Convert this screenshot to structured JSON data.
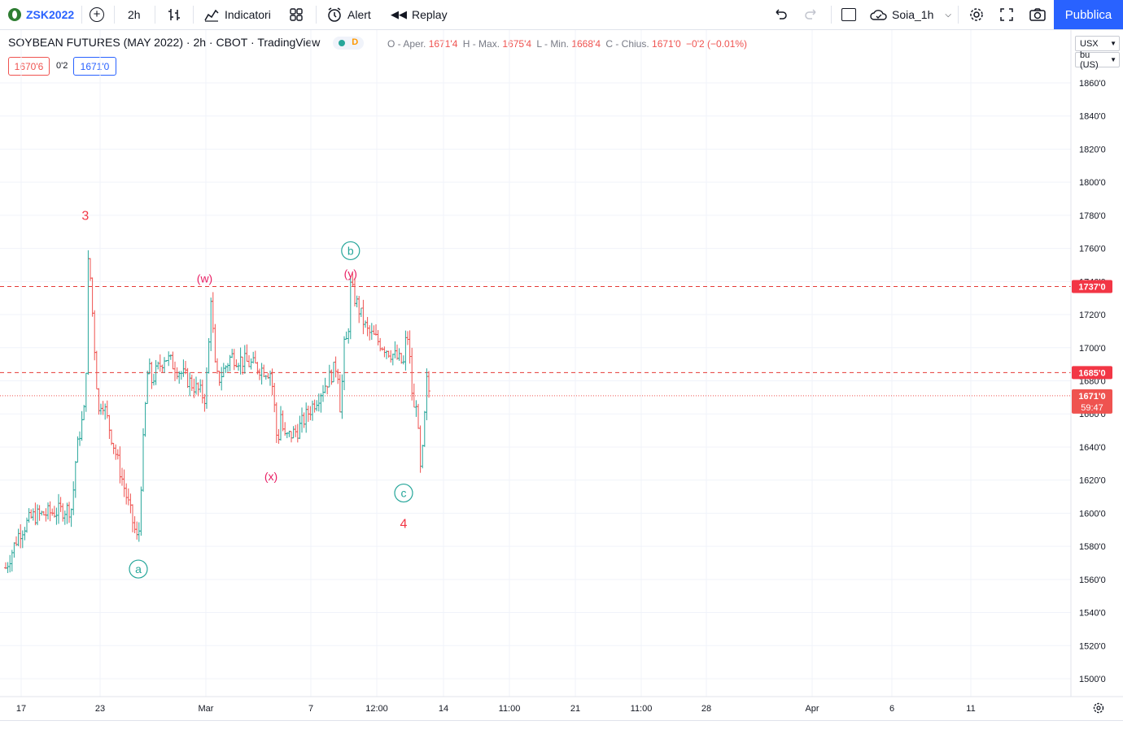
{
  "toolbar": {
    "symbol": "ZSK2022",
    "interval": "2h",
    "indicators_label": "Indicatori",
    "alert_label": "Alert",
    "replay_label": "Replay",
    "layout_name": "Soia_1h",
    "publish_label": "Pubblica"
  },
  "legend": {
    "title": "SOYBEAN FUTURES (MAY 2022)",
    "interval": "2h",
    "exchange": "CBOT",
    "source": "TradingView",
    "flag": "D",
    "open_label": "O - Aper.",
    "open": "1671'4",
    "high_label": "H - Max.",
    "high": "1675'4",
    "low_label": "L - Min.",
    "low": "1668'4",
    "close_label": "C - Chius.",
    "close": "1671'0",
    "change": "−0'2 (−0.01%)",
    "sell": "1670'6",
    "spread": "0'2",
    "buy": "1671'0"
  },
  "price_scale": {
    "currency": "USX",
    "unit": "bu (US)",
    "ticks": [
      "1860'0",
      "1840'0",
      "1820'0",
      "1800'0",
      "1780'0",
      "1760'0",
      "1740'0",
      "1720'0",
      "1700'0",
      "1680'0",
      "1660'0",
      "1640'0",
      "1620'0",
      "1600'0",
      "1580'0",
      "1560'0",
      "1540'0",
      "1520'0",
      "1500'0"
    ],
    "current_price": "1671'0",
    "countdown": "59:47"
  },
  "time_axis": {
    "labels": [
      "17",
      "23",
      "Mar",
      "7",
      "12:00",
      "14",
      "11:00",
      "21",
      "11:00",
      "28",
      "Apr",
      "6",
      "11"
    ]
  },
  "colors": {
    "up": "#26a69a",
    "down": "#ef5350",
    "wave_red": "#f23645",
    "wave_pink": "#e91e63",
    "accent": "#2962ff"
  },
  "chart_data": {
    "type": "ohlc",
    "ylim": [
      1490,
      1870
    ],
    "horizontal_lines": [
      1737,
      1685,
      1671
    ],
    "waves": [
      {
        "label": "3",
        "x": "2022-02-24",
        "y": 1760
      },
      {
        "label": "a",
        "x": "2022-02-28",
        "y": 1581
      },
      {
        "label": "(w)",
        "x": "2022-03-08",
        "y": 1735
      },
      {
        "label": "(x)",
        "x": "2022-03-15",
        "y": 1640
      },
      {
        "label": "b",
        "x": "2022-03-24",
        "y": 1737
      },
      {
        "label": "(y)",
        "x": "2022-03-24",
        "y": 1737
      },
      {
        "label": "c",
        "x": "2022-03-30",
        "y": 1623
      },
      {
        "label": "4",
        "x": "2022-03-30",
        "y": 1623
      }
    ],
    "price_path": [
      [
        "2022-02-16",
        1567
      ],
      [
        "2022-02-17",
        1588
      ],
      [
        "2022-02-18",
        1598
      ],
      [
        "2022-02-21",
        1603
      ],
      [
        "2022-02-22",
        1630
      ],
      [
        "2022-02-23",
        1645
      ],
      [
        "2022-02-24",
        1665
      ],
      [
        "2022-02-24",
        1760
      ],
      [
        "2022-02-25",
        1660
      ],
      [
        "2022-02-25",
        1670
      ],
      [
        "2022-02-28",
        1581
      ],
      [
        "2022-02-28",
        1625
      ],
      [
        "2022-03-01",
        1660
      ],
      [
        "2022-03-02",
        1690
      ],
      [
        "2022-03-03",
        1680
      ],
      [
        "2022-03-04",
        1695
      ],
      [
        "2022-03-07",
        1670
      ],
      [
        "2022-03-07",
        1690
      ],
      [
        "2022-03-08",
        1735
      ],
      [
        "2022-03-09",
        1690
      ],
      [
        "2022-03-10",
        1680
      ],
      [
        "2022-03-11",
        1695
      ],
      [
        "2022-03-14",
        1685
      ],
      [
        "2022-03-15",
        1665
      ],
      [
        "2022-03-15",
        1640
      ],
      [
        "2022-03-16",
        1660
      ],
      [
        "2022-03-17",
        1645
      ],
      [
        "2022-03-18",
        1650
      ],
      [
        "2022-03-21",
        1690
      ],
      [
        "2022-03-21",
        1660
      ],
      [
        "2022-03-22",
        1700
      ],
      [
        "2022-03-23",
        1705
      ],
      [
        "2022-03-23",
        1725
      ],
      [
        "2022-03-24",
        1737
      ],
      [
        "2022-03-25",
        1715
      ],
      [
        "2022-03-25",
        1710
      ],
      [
        "2022-03-28",
        1690
      ],
      [
        "2022-03-28",
        1712
      ],
      [
        "2022-03-29",
        1690
      ],
      [
        "2022-03-29",
        1660
      ],
      [
        "2022-03-30",
        1670
      ],
      [
        "2022-03-30",
        1623
      ],
      [
        "2022-03-31",
        1640
      ],
      [
        "2022-03-31",
        1680
      ],
      [
        "2022-04-01",
        1671
      ]
    ]
  }
}
